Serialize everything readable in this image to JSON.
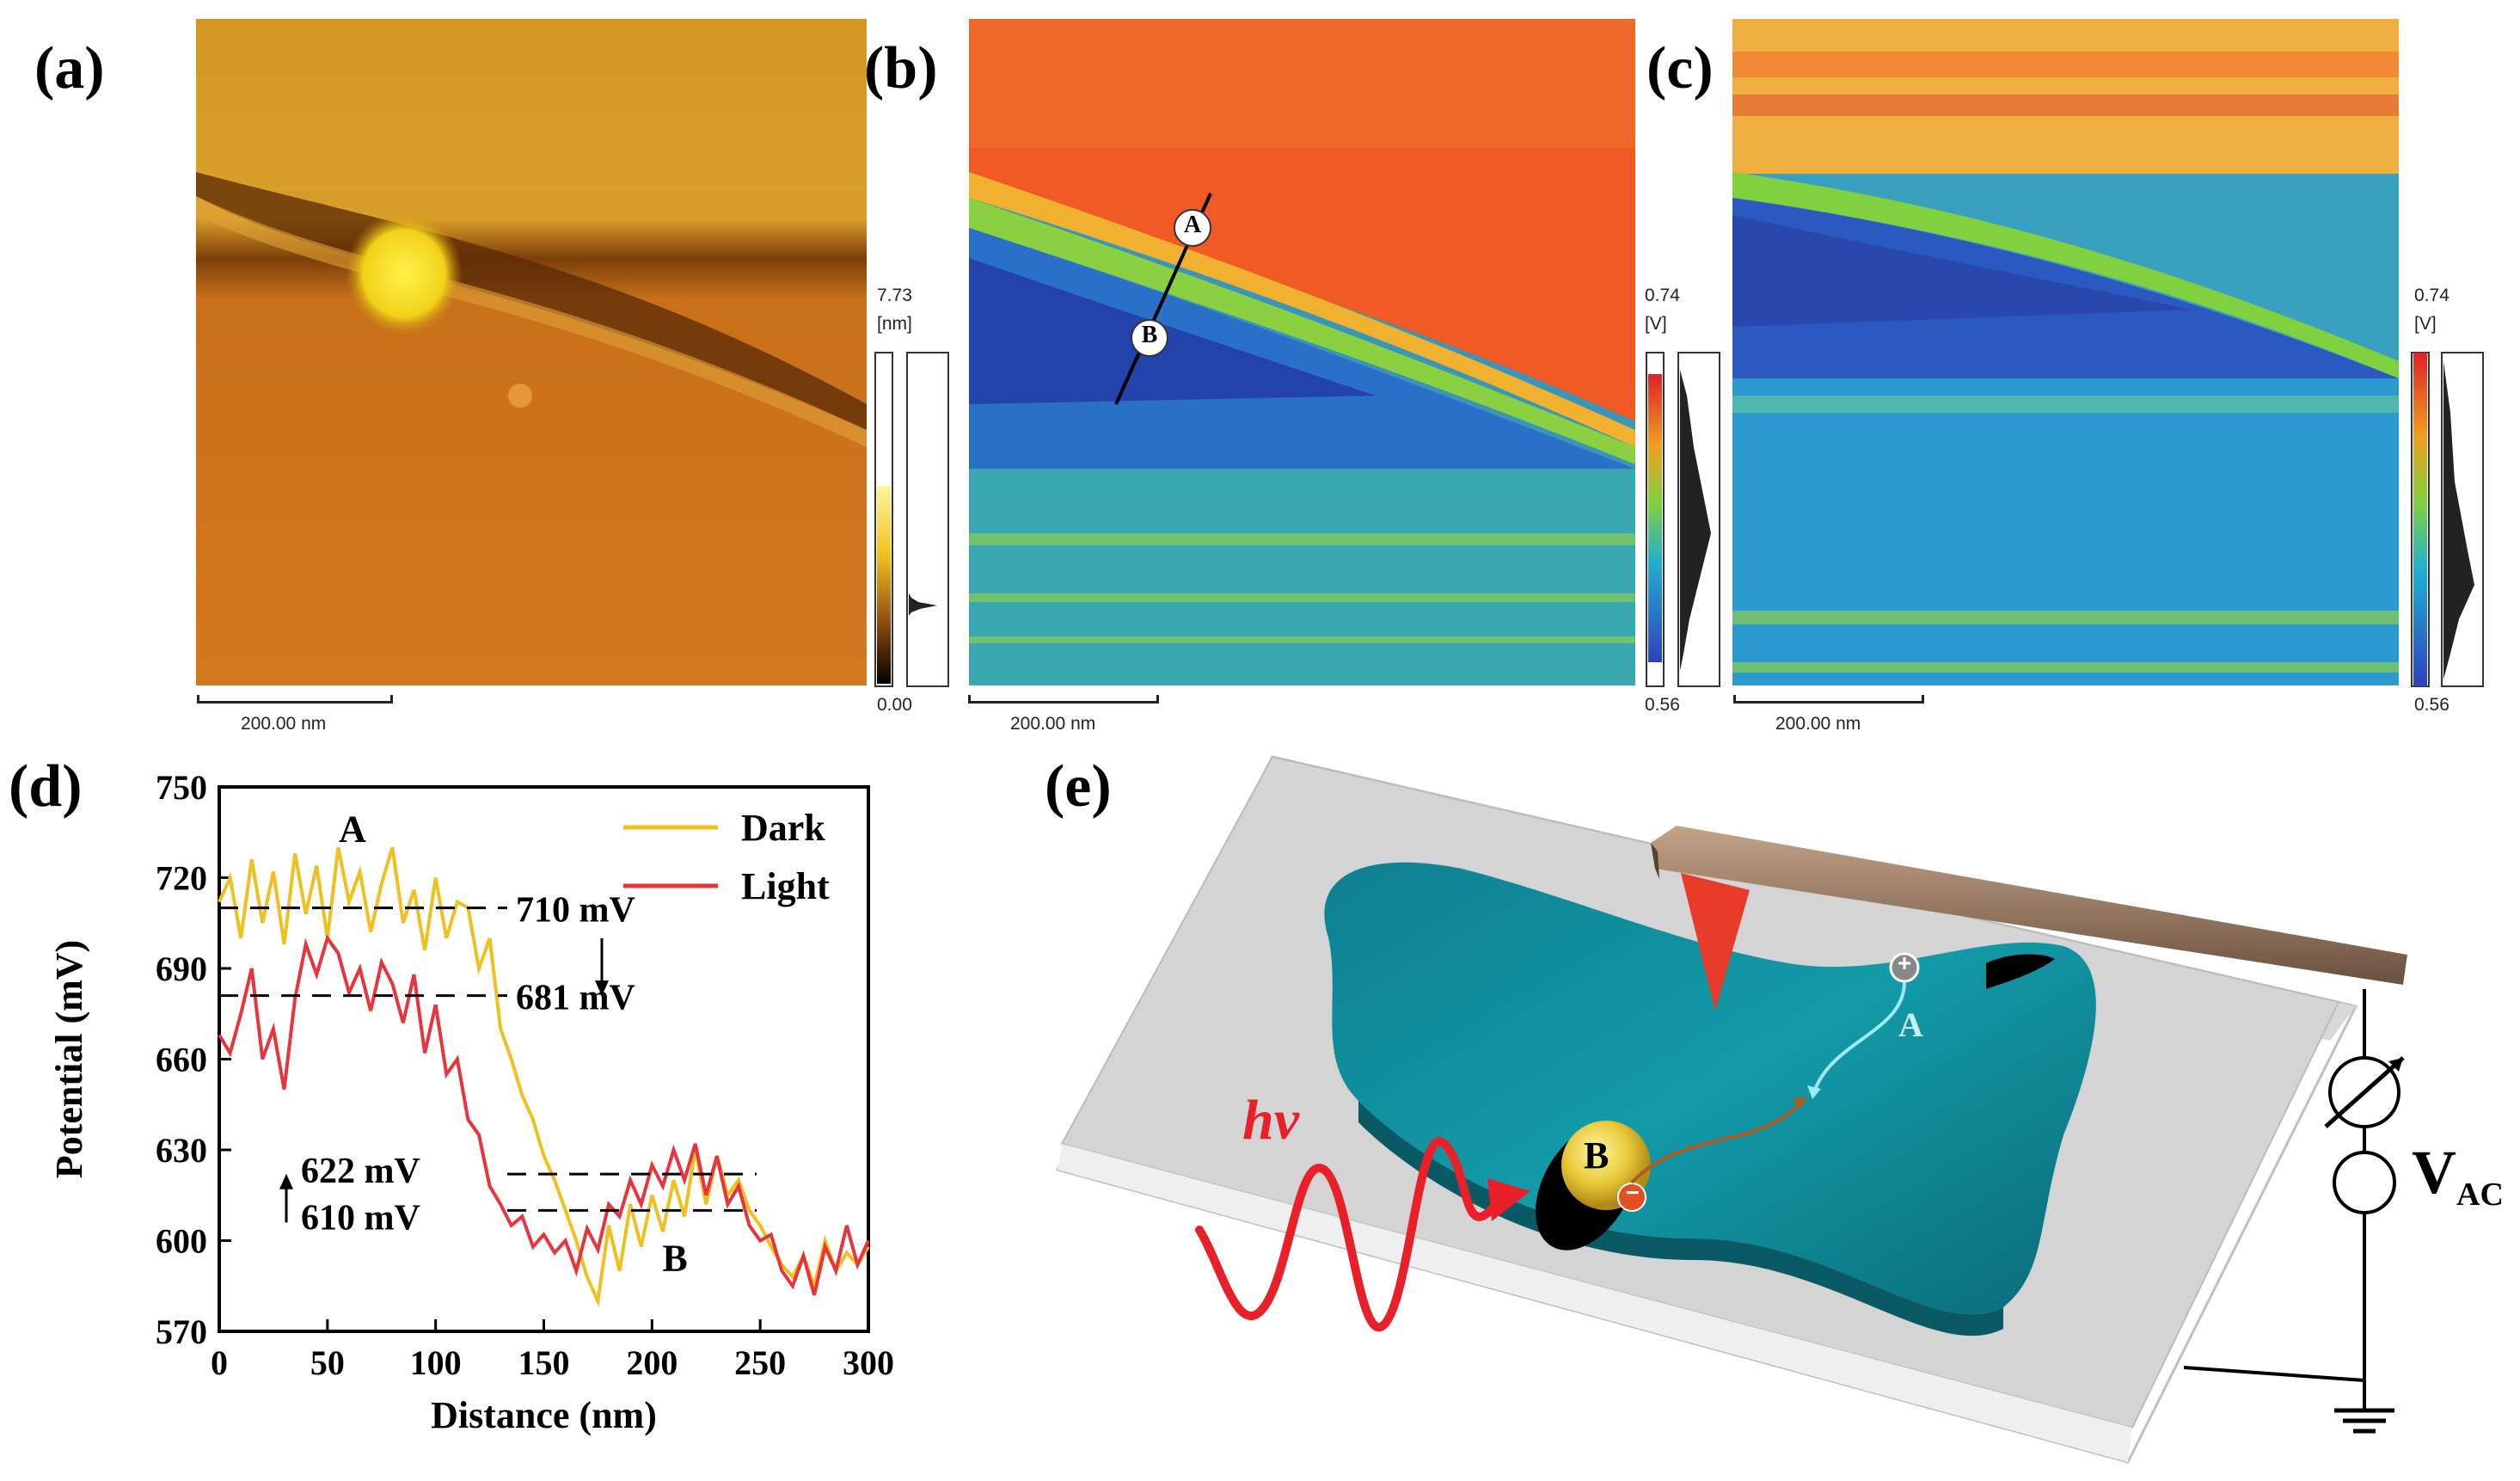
{
  "panels": {
    "a": {
      "label": "(a)",
      "scalebar": "200.00 nm",
      "colorbar": {
        "max": "7.73",
        "unit": "[nm]",
        "min": "0.00"
      }
    },
    "b": {
      "label": "(b)",
      "scalebar": "200.00 nm",
      "point_a": "A",
      "point_b": "B",
      "colorbar": {
        "max": "0.74",
        "unit": "[V]",
        "min": "0.56"
      }
    },
    "c": {
      "label": "(c)",
      "scalebar": "200.00 nm",
      "colorbar": {
        "max": "0.74",
        "unit": "[V]",
        "min": "0.56"
      }
    },
    "d": {
      "label": "(d)",
      "point_a": "A",
      "point_b": "B",
      "annotations": [
        "710 mV",
        "681 mV",
        "622 mV",
        "610 mV"
      ]
    },
    "e": {
      "label": "(e)",
      "hv": "hv",
      "tip_point": "A",
      "particle": "B",
      "plus": "+",
      "minus": "−",
      "vac_main": "V",
      "vac_sub": "AC"
    }
  },
  "chart_data": {
    "type": "line",
    "xlabel": "Distance (nm)",
    "ylabel": "Potential (mV)",
    "xlim": [
      0,
      300
    ],
    "ylim": [
      570,
      750
    ],
    "xticks": [
      0,
      50,
      100,
      150,
      200,
      250,
      300
    ],
    "yticks": [
      570,
      600,
      630,
      660,
      690,
      720,
      750
    ],
    "colors": {
      "Dark": "#f0c020",
      "Light": "#e8343c"
    },
    "series": [
      {
        "name": "Dark",
        "x": [
          0,
          5,
          10,
          15,
          20,
          25,
          30,
          35,
          40,
          45,
          50,
          55,
          60,
          65,
          70,
          75,
          80,
          85,
          90,
          95,
          100,
          105,
          110,
          115,
          120,
          125,
          130,
          135,
          140,
          145,
          150,
          155,
          160,
          165,
          170,
          175,
          180,
          185,
          190,
          195,
          200,
          205,
          210,
          215,
          220,
          225,
          230,
          235,
          240,
          245,
          250,
          255,
          260,
          265,
          270,
          275,
          280,
          285,
          290,
          295,
          300
        ],
        "y": [
          712,
          720,
          700,
          726,
          705,
          722,
          698,
          728,
          708,
          724,
          700,
          730,
          712,
          722,
          702,
          718,
          730,
          705,
          716,
          696,
          720,
          700,
          712,
          710,
          690,
          700,
          670,
          660,
          648,
          640,
          628,
          620,
          610,
          600,
          588,
          580,
          605,
          590,
          612,
          598,
          615,
          603,
          620,
          608,
          630,
          612,
          628,
          615,
          620,
          610,
          605,
          598,
          592,
          588,
          595,
          585,
          600,
          590,
          596,
          592,
          598
        ]
      },
      {
        "name": "Light",
        "x": [
          0,
          5,
          10,
          15,
          20,
          25,
          30,
          35,
          40,
          45,
          50,
          55,
          60,
          65,
          70,
          75,
          80,
          85,
          90,
          95,
          100,
          105,
          110,
          115,
          120,
          125,
          130,
          135,
          140,
          145,
          150,
          155,
          160,
          165,
          170,
          175,
          180,
          185,
          190,
          195,
          200,
          205,
          210,
          215,
          220,
          225,
          230,
          235,
          240,
          245,
          250,
          255,
          260,
          265,
          270,
          275,
          280,
          285,
          290,
          295,
          300
        ],
        "y": [
          668,
          662,
          675,
          690,
          660,
          670,
          650,
          680,
          698,
          688,
          700,
          695,
          682,
          690,
          676,
          692,
          685,
          672,
          688,
          662,
          678,
          655,
          660,
          640,
          635,
          618,
          612,
          605,
          608,
          598,
          602,
          596,
          600,
          590,
          604,
          597,
          612,
          608,
          620,
          612,
          625,
          618,
          630,
          620,
          632,
          615,
          628,
          612,
          618,
          605,
          600,
          602,
          590,
          585,
          595,
          582,
          598,
          590,
          605,
          592,
          600
        ]
      }
    ],
    "reference_lines": [
      710,
      681,
      622,
      610
    ]
  }
}
